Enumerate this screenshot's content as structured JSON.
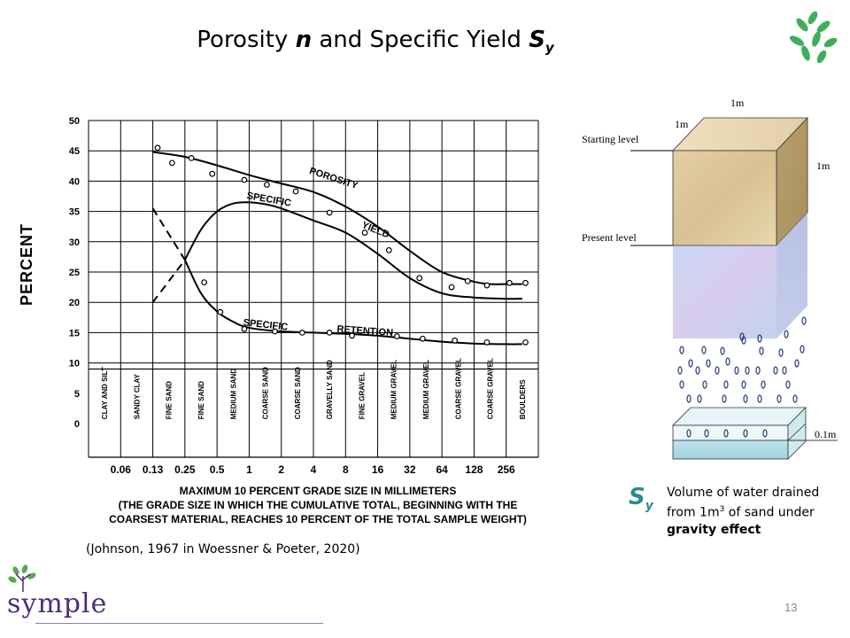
{
  "slide": {
    "title_prefix": "Porosity ",
    "title_n": "n",
    "title_mid": " and Specific Yield ",
    "title_S": "S",
    "title_sub": "y",
    "page_number": "13",
    "citation": "(Johnson, 1967 in Woessner & Poeter, 2020)",
    "brand": "symple"
  },
  "definition": {
    "symbol": "S",
    "symbol_sub": "y",
    "text_line1": "Volume of water drained",
    "text_line2_prefix": "from 1m",
    "text_line2_sup": "3",
    "text_line2_suffix": " of sand under",
    "text_line3": "gravity effect"
  },
  "diagram": {
    "dim_top": "1m",
    "dim_depth": "1m",
    "dim_side": "1m",
    "starting_level": "Starting  level",
    "present_level": "Present level",
    "tray_label": "0.1m"
  },
  "chart_data": {
    "type": "line",
    "ylabel": "PERCENT",
    "ylim": [
      0,
      50
    ],
    "y_ticks": [
      "50",
      "45",
      "40",
      "35",
      "30",
      "25",
      "20",
      "15",
      "10",
      "5",
      "0"
    ],
    "x_ticks": [
      "0.06",
      "0.13",
      "0.25",
      "0.5",
      "1",
      "2",
      "4",
      "8",
      "16",
      "32",
      "64",
      "128",
      "256"
    ],
    "categories": [
      "CLAY AND SILT",
      "SANDY CLAY",
      "FINE SAND",
      "FINE SAND",
      "MEDIUM SAND",
      "COARSE SAND",
      "COARSE SAND",
      "GRAVELLY SAND",
      "FINE GRAVEL",
      "MEDIUM GRAVEL",
      "MEDIUM GRAVEL",
      "COARSE GRAVEL",
      "COARSE GRAVEL",
      "BOULDERS"
    ],
    "xlabel_lines": [
      "MAXIMUM 10 PERCENT GRADE SIZE IN MILLIMETERS",
      "(THE GRADE SIZE IN WHICH THE CUMULATIVE TOTAL, BEGINNING WITH THE",
      "COARSEST MATERIAL, REACHES 10 PERCENT OF THE TOTAL SAMPLE WEIGHT)"
    ],
    "series": [
      {
        "name": "POROSITY",
        "label_words": [
          "POROSITY"
        ],
        "curve_x": [
          2.0,
          3.0,
          4.0,
          5.0,
          6.0,
          7.0,
          8.0,
          9.0,
          10.0,
          11.0,
          12.0,
          12.5,
          13.0,
          13.5
        ],
        "curve_y": [
          44.8,
          44.0,
          42.6,
          41.0,
          39.6,
          38.2,
          35.8,
          32.5,
          28.5,
          25.0,
          23.4,
          23.0,
          23.0,
          23.0
        ],
        "points_x": [
          2.15,
          2.6,
          3.2,
          3.85,
          4.85,
          5.55,
          6.45,
          7.5,
          8.6,
          9.35,
          10.3,
          11.3,
          11.8,
          12.4,
          13.1,
          13.6
        ],
        "points_y": [
          45.5,
          43.0,
          43.8,
          41.2,
          40.2,
          39.4,
          38.3,
          34.8,
          31.5,
          28.6,
          24.0,
          22.5,
          23.5,
          22.8,
          23.2,
          23.2
        ]
      },
      {
        "name": "SPECIFIC YIELD",
        "label_words": [
          "SPECIFIC",
          "YIELD"
        ],
        "dashed_x": [
          2.0,
          3.0
        ],
        "dashed_y": [
          20.0,
          27.0
        ],
        "curve_x": [
          3.0,
          3.5,
          4.0,
          4.5,
          5.0,
          5.5,
          6.0,
          7.0,
          8.0,
          9.0,
          10.0,
          11.0,
          12.0,
          13.0,
          13.5
        ],
        "curve_y": [
          27.0,
          32.0,
          35.0,
          36.3,
          36.5,
          36.2,
          35.5,
          33.5,
          31.5,
          28.0,
          24.0,
          21.5,
          20.8,
          20.6,
          20.6
        ]
      },
      {
        "name": "SPECIFIC RETENTION",
        "label_words": [
          "SPECIFIC",
          "RETENTION"
        ],
        "dashed_x": [
          2.0,
          3.0
        ],
        "dashed_y": [
          35.5,
          27.0
        ],
        "curve_x": [
          3.0,
          3.5,
          4.0,
          4.5,
          5.0,
          6.0,
          7.0,
          8.0,
          9.0,
          10.0,
          11.0,
          12.0,
          13.0,
          13.5
        ],
        "curve_y": [
          27.0,
          21.5,
          18.5,
          16.8,
          15.8,
          15.2,
          15.0,
          14.8,
          14.5,
          14.0,
          13.5,
          13.2,
          13.1,
          13.1
        ],
        "points_x": [
          3.6,
          4.1,
          4.85,
          5.8,
          6.65,
          7.5,
          8.2,
          9.6,
          10.4,
          11.4,
          12.4,
          13.6
        ],
        "points_y": [
          23.3,
          18.4,
          15.6,
          15.2,
          15.0,
          15.0,
          14.5,
          14.4,
          14.0,
          13.7,
          13.4,
          13.4
        ]
      }
    ],
    "grid": true
  }
}
